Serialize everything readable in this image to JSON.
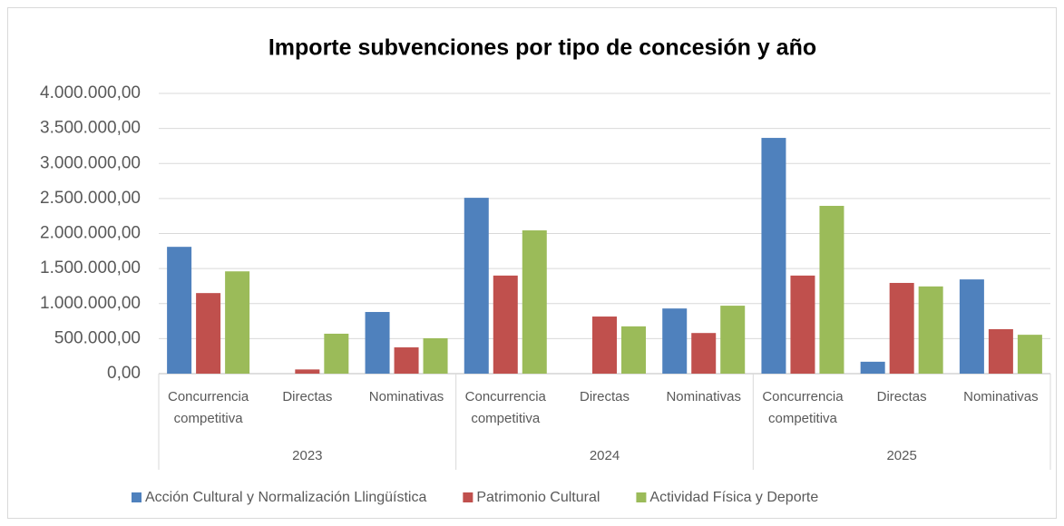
{
  "chart_data": {
    "type": "bar",
    "title": "Importe subvenciones por tipo de concesión y año",
    "categories": [
      "Concurrencia competitiva",
      "Directas",
      "Nominativas",
      "Concurrencia competitiva",
      "Directas",
      "Nominativas",
      "Concurrencia competitiva",
      "Directas",
      "Nominativas"
    ],
    "category_groups": [
      "2023",
      "2024",
      "2025"
    ],
    "series": [
      {
        "name": "Acción Cultural y Normalización Llingüística",
        "color": "#4f81bd",
        "values": [
          1810000,
          0,
          880000,
          2510000,
          0,
          930000,
          3365000,
          170000,
          1345000
        ]
      },
      {
        "name": "Patrimonio Cultural",
        "color": "#c0504d",
        "values": [
          1150000,
          60000,
          375000,
          1400000,
          815000,
          580000,
          1400000,
          1295000,
          635000
        ]
      },
      {
        "name": "Actividad Física y Deporte",
        "color": "#9bbb59",
        "values": [
          1460000,
          570000,
          505000,
          2045000,
          675000,
          970000,
          2395000,
          1245000,
          555000
        ]
      }
    ],
    "ylim": [
      0,
      4000000
    ],
    "yticks": [
      {
        "value": 0,
        "label": "0,00"
      },
      {
        "value": 500000,
        "label": "500.000,00"
      },
      {
        "value": 1000000,
        "label": "1.000.000,00"
      },
      {
        "value": 1500000,
        "label": "1.500.000,00"
      },
      {
        "value": 2000000,
        "label": "2.000.000,00"
      },
      {
        "value": 2500000,
        "label": "2.500.000,00"
      },
      {
        "value": 3000000,
        "label": "3.000.000,00"
      },
      {
        "value": 3500000,
        "label": "3.500.000,00"
      },
      {
        "value": 4000000,
        "label": "4.000.000,00"
      }
    ],
    "grid": true,
    "legend": "bottom"
  }
}
